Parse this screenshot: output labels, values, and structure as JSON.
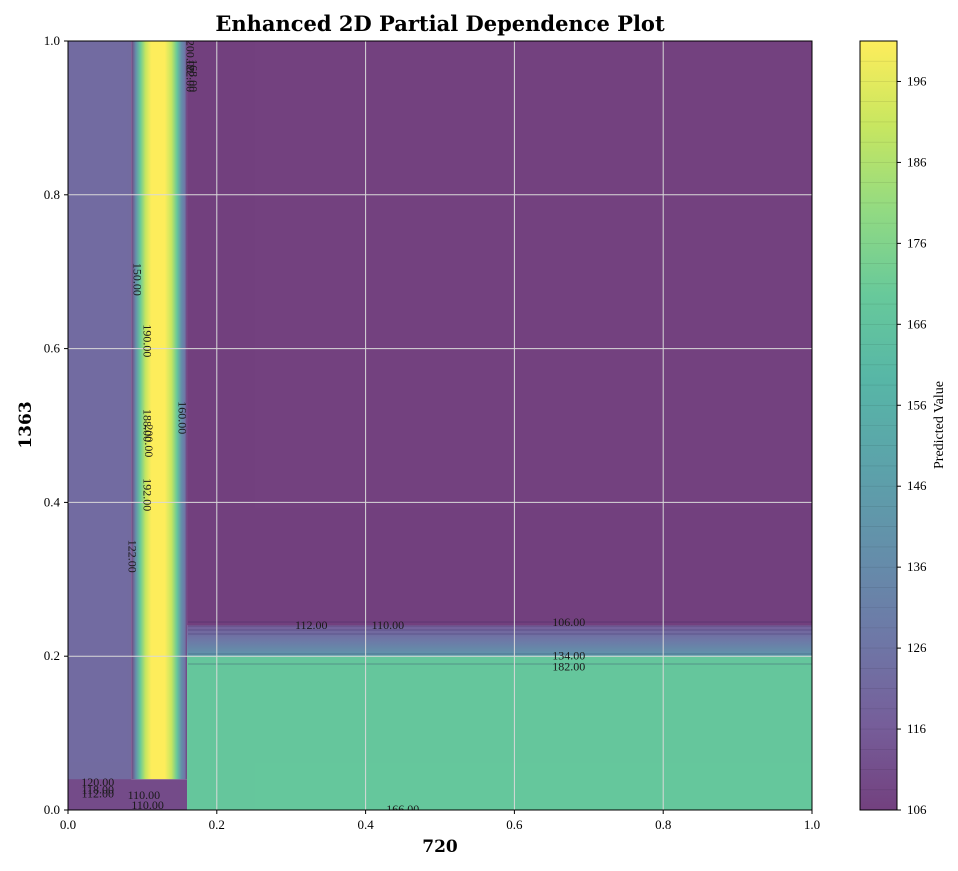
{
  "chart_data": {
    "type": "heatmap",
    "title": "Enhanced 2D Partial Dependence Plot",
    "xlabel": "720",
    "ylabel": "1363",
    "xlim": [
      0.0,
      1.0
    ],
    "ylim": [
      0.0,
      1.0
    ],
    "xticks": [
      "0.0",
      "0.2",
      "0.4",
      "0.6",
      "0.8",
      "1.0"
    ],
    "yticks": [
      "0.0",
      "0.2",
      "0.4",
      "0.6",
      "0.8",
      "1.0"
    ],
    "grid": true,
    "colormap": "viridis",
    "alpha": 0.75,
    "colorbar": {
      "label": "Predicted Value",
      "range": [
        106,
        201
      ],
      "ticks": [
        "106",
        "116",
        "126",
        "136",
        "146",
        "156",
        "166",
        "176",
        "186",
        "196"
      ]
    },
    "regions": [
      {
        "name": "left-band",
        "x": [
          0.0,
          0.085
        ],
        "y": [
          0.0,
          1.0
        ],
        "value": 122
      },
      {
        "name": "right-upper-region",
        "x": [
          0.16,
          1.0
        ],
        "y": [
          0.24,
          1.0
        ],
        "value": 106
      },
      {
        "name": "middle-strip",
        "x": [
          0.16,
          1.0
        ],
        "y": [
          0.2,
          0.24
        ],
        "value": 120
      },
      {
        "name": "lower-right-region",
        "x": [
          0.16,
          1.0
        ],
        "y": [
          0.0,
          0.2
        ],
        "value": 168
      },
      {
        "name": "vertical-peak-band",
        "x": [
          0.085,
          0.16
        ],
        "y": [
          0.04,
          1.0
        ],
        "value": 200
      },
      {
        "name": "bottom-left-strip",
        "x": [
          0.0,
          0.16
        ],
        "y": [
          0.0,
          0.04
        ],
        "value": 110
      }
    ],
    "contour_labels": [
      {
        "text": "120.00",
        "x": 0.04,
        "y": 0.035,
        "rotation": 0
      },
      {
        "text": "118.00",
        "x": 0.04,
        "y": 0.025,
        "rotation": 0
      },
      {
        "text": "112.00",
        "x": 0.04,
        "y": 0.02,
        "rotation": 0
      },
      {
        "text": "110.00",
        "x": 0.102,
        "y": 0.018,
        "rotation": 0
      },
      {
        "text": "110.00",
        "x": 0.107,
        "y": 0.005,
        "rotation": 0
      },
      {
        "text": "112.00",
        "x": 0.327,
        "y": 0.239,
        "rotation": 0
      },
      {
        "text": "110.00",
        "x": 0.43,
        "y": 0.239,
        "rotation": 0
      },
      {
        "text": "106.00",
        "x": 0.673,
        "y": 0.243,
        "rotation": 0
      },
      {
        "text": "134.00",
        "x": 0.673,
        "y": 0.199,
        "rotation": 0
      },
      {
        "text": "182.00",
        "x": 0.673,
        "y": 0.185,
        "rotation": 0
      },
      {
        "text": "166.00",
        "x": 0.45,
        "y": 0.0,
        "rotation": 0
      },
      {
        "text": "200.00",
        "x": 0.163,
        "y": 0.98,
        "rotation": 90
      },
      {
        "text": "122.00",
        "x": 0.163,
        "y": 0.955,
        "rotation": 90
      },
      {
        "text": "168.00",
        "x": 0.167,
        "y": 0.955,
        "rotation": 90
      },
      {
        "text": "150.00",
        "x": 0.092,
        "y": 0.69,
        "rotation": 90
      },
      {
        "text": "190.00",
        "x": 0.105,
        "y": 0.61,
        "rotation": 90
      },
      {
        "text": "188.00",
        "x": 0.105,
        "y": 0.5,
        "rotation": 90
      },
      {
        "text": "200.00",
        "x": 0.107,
        "y": 0.48,
        "rotation": 90
      },
      {
        "text": "160.00",
        "x": 0.152,
        "y": 0.51,
        "rotation": 90
      },
      {
        "text": "192.00",
        "x": 0.105,
        "y": 0.41,
        "rotation": 90
      },
      {
        "text": "122.00",
        "x": 0.085,
        "y": 0.33,
        "rotation": 90
      }
    ]
  }
}
